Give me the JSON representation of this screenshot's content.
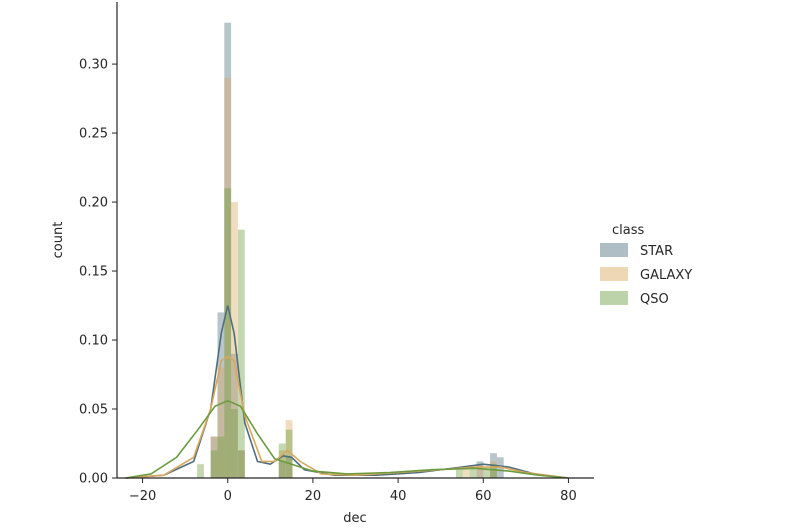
{
  "chart_data": {
    "type": "histogram",
    "xlabel": "dec",
    "ylabel": "count",
    "xlim": [
      -26,
      86
    ],
    "ylim": [
      0,
      0.345
    ],
    "xticks": [
      -20,
      0,
      20,
      40,
      60,
      80
    ],
    "xtick_labels": [
      "−20",
      "0",
      "20",
      "40",
      "60",
      "80"
    ],
    "yticks": [
      0.0,
      0.05,
      0.1,
      0.15,
      0.2,
      0.25,
      0.3
    ],
    "ytick_labels": [
      "0.00",
      "0.05",
      "0.10",
      "0.15",
      "0.20",
      "0.25",
      "0.30"
    ],
    "grid": false,
    "legend": {
      "title": "class",
      "placement": "right"
    },
    "bin_width": 1.6,
    "series": [
      {
        "name": "STAR",
        "color": "#4e6f7e",
        "bars": [
          [
            -1.6,
            0.12
          ],
          [
            0,
            0.33
          ],
          [
            1.6,
            0.09
          ],
          [
            -3.2,
            0.03
          ],
          [
            3.2,
            0.02
          ],
          [
            12.8,
            0.012
          ],
          [
            14.4,
            0.015
          ],
          [
            59.2,
            0.012
          ],
          [
            62.4,
            0.018
          ],
          [
            64.0,
            0.015
          ]
        ],
        "kde": [
          [
            -24,
            0
          ],
          [
            -15,
            0.002
          ],
          [
            -8,
            0.012
          ],
          [
            -4,
            0.05
          ],
          [
            -1.5,
            0.105
          ],
          [
            0,
            0.125
          ],
          [
            1.5,
            0.105
          ],
          [
            4,
            0.04
          ],
          [
            7,
            0.012
          ],
          [
            10,
            0.01
          ],
          [
            13,
            0.016
          ],
          [
            15,
            0.015
          ],
          [
            18,
            0.006
          ],
          [
            25,
            0.002
          ],
          [
            35,
            0.002
          ],
          [
            45,
            0.004
          ],
          [
            55,
            0.008
          ],
          [
            60,
            0.01
          ],
          [
            66,
            0.008
          ],
          [
            72,
            0.003
          ],
          [
            80,
            0
          ]
        ]
      },
      {
        "name": "GALAXY",
        "color": "#d9a75c",
        "bars": [
          [
            -1.6,
            0.08
          ],
          [
            0,
            0.29
          ],
          [
            1.6,
            0.2
          ],
          [
            -3.2,
            0.03
          ],
          [
            3.2,
            0.02
          ],
          [
            12.8,
            0.02
          ],
          [
            14.4,
            0.042
          ],
          [
            56.0,
            0.008
          ],
          [
            59.2,
            0.01
          ],
          [
            62.4,
            0.012
          ]
        ],
        "kde": [
          [
            -24,
            0
          ],
          [
            -15,
            0.002
          ],
          [
            -8,
            0.015
          ],
          [
            -4,
            0.05
          ],
          [
            -1.5,
            0.085
          ],
          [
            0,
            0.088
          ],
          [
            1.5,
            0.085
          ],
          [
            4,
            0.045
          ],
          [
            8,
            0.012
          ],
          [
            11,
            0.012
          ],
          [
            14,
            0.02
          ],
          [
            17,
            0.012
          ],
          [
            22,
            0.003
          ],
          [
            30,
            0.002
          ],
          [
            40,
            0.004
          ],
          [
            50,
            0.006
          ],
          [
            58,
            0.008
          ],
          [
            64,
            0.008
          ],
          [
            70,
            0.004
          ],
          [
            80,
            0
          ]
        ]
      },
      {
        "name": "QSO",
        "color": "#6a9b3d",
        "bars": [
          [
            -1.6,
            0.03
          ],
          [
            0,
            0.21
          ],
          [
            1.6,
            0.05
          ],
          [
            3.2,
            0.18
          ],
          [
            -3.2,
            0.02
          ],
          [
            -6.4,
            0.01
          ],
          [
            12.8,
            0.025
          ],
          [
            14.4,
            0.035
          ],
          [
            54.4,
            0.006
          ],
          [
            57.6,
            0.008
          ],
          [
            60.8,
            0.008
          ],
          [
            62.4,
            0.01
          ]
        ],
        "kde": [
          [
            -24,
            0
          ],
          [
            -18,
            0.003
          ],
          [
            -12,
            0.015
          ],
          [
            -7,
            0.035
          ],
          [
            -3,
            0.052
          ],
          [
            0,
            0.056
          ],
          [
            3,
            0.052
          ],
          [
            7,
            0.032
          ],
          [
            11,
            0.014
          ],
          [
            15,
            0.01
          ],
          [
            20,
            0.005
          ],
          [
            28,
            0.003
          ],
          [
            38,
            0.004
          ],
          [
            48,
            0.006
          ],
          [
            58,
            0.007
          ],
          [
            66,
            0.005
          ],
          [
            73,
            0.002
          ],
          [
            80,
            0
          ]
        ]
      }
    ]
  }
}
